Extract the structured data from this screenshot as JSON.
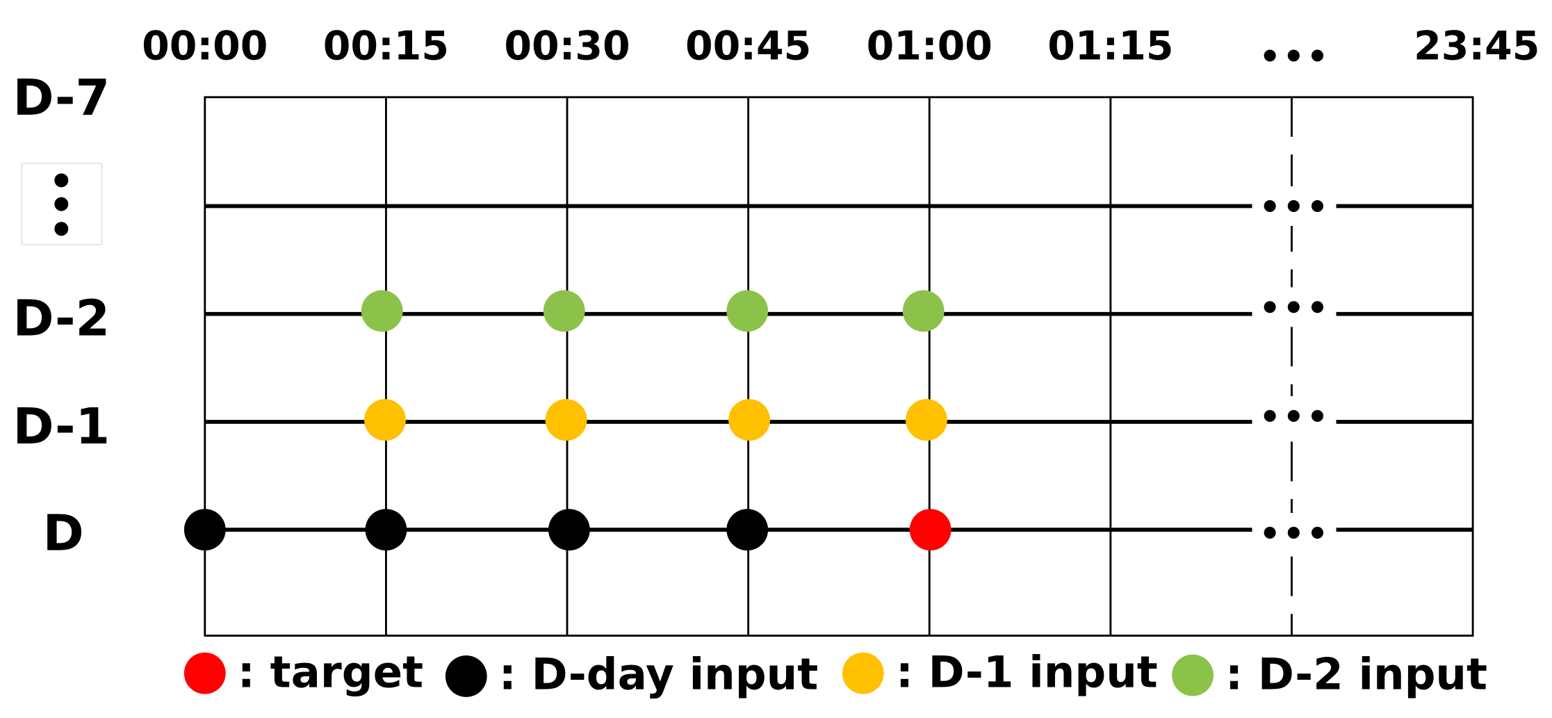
{
  "time_labels": [
    "00:00",
    "00:15",
    "00:30",
    "00:45",
    "01:00",
    "01:15",
    "23:45"
  ],
  "day_labels": [
    "D-7",
    "D-2",
    "D-1",
    "D"
  ],
  "legend": [
    ": target",
    ": D-day input",
    ": D-1 input",
    ": D-2 input"
  ]
}
